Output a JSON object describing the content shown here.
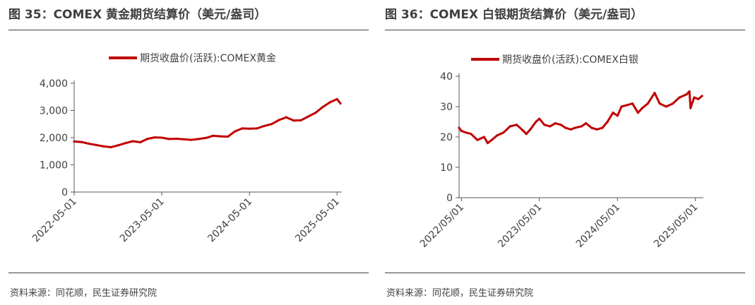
{
  "figures": [
    {
      "title": "图 35：COMEX 黄金期货结算价（美元/盎司）",
      "source": "资料来源：同花顺，民生证券研究院"
    },
    {
      "title": "图 36：COMEX 白银期货结算价（美元/盎司）",
      "source": "资料来源：同花顺，民生证券研究院"
    }
  ],
  "colors": {
    "series": "#C00000",
    "axis": "#595959",
    "text": "#404040"
  },
  "chart_data": [
    {
      "type": "line",
      "legend_position": "top-center",
      "grid": false,
      "ylim": [
        0,
        4000
      ],
      "yticks": [
        0,
        1000,
        2000,
        3000,
        4000
      ],
      "ytick_labels": [
        "0",
        "1,000",
        "2,000",
        "3,000",
        "4,000"
      ],
      "xlim": [
        "2022-05-01",
        "2025-05-15"
      ],
      "xtick_labels": [
        "2022-05-01",
        "2023-05-01",
        "2024-05-01",
        "2025-05-01"
      ],
      "series": [
        {
          "name": "期货收盘价(活跃):COMEX黄金",
          "x": [
            "2022-05-01",
            "2022-06-01",
            "2022-07-01",
            "2022-08-01",
            "2022-09-01",
            "2022-10-01",
            "2022-11-01",
            "2022-12-01",
            "2023-01-01",
            "2023-02-01",
            "2023-03-01",
            "2023-04-01",
            "2023-05-01",
            "2023-06-01",
            "2023-07-01",
            "2023-08-01",
            "2023-09-01",
            "2023-10-01",
            "2023-11-01",
            "2023-12-01",
            "2024-01-01",
            "2024-02-01",
            "2024-03-01",
            "2024-04-01",
            "2024-05-01",
            "2024-06-01",
            "2024-07-01",
            "2024-08-01",
            "2024-09-01",
            "2024-10-01",
            "2024-11-01",
            "2024-12-01",
            "2025-01-01",
            "2025-02-01",
            "2025-03-01",
            "2025-04-01",
            "2025-05-01",
            "2025-05-15"
          ],
          "y": [
            1860,
            1840,
            1780,
            1730,
            1680,
            1650,
            1720,
            1800,
            1870,
            1830,
            1950,
            2010,
            2000,
            1950,
            1960,
            1940,
            1920,
            1950,
            1990,
            2070,
            2050,
            2040,
            2230,
            2340,
            2330,
            2340,
            2430,
            2500,
            2650,
            2750,
            2630,
            2640,
            2780,
            2920,
            3120,
            3300,
            3420,
            3260
          ]
        }
      ]
    },
    {
      "type": "line",
      "legend_position": "top-center",
      "grid": false,
      "ylim": [
        0,
        40
      ],
      "yticks": [
        0,
        10,
        20,
        30,
        40
      ],
      "ytick_labels": [
        "0",
        "10",
        "20",
        "30",
        "40"
      ],
      "xlim": [
        "2022-04-20",
        "2025-06-01"
      ],
      "xtick_labels": [
        "2022/05/01",
        "2023/05/01",
        "2024/05/01",
        "2025/05/01"
      ],
      "series": [
        {
          "name": "期货收盘价(活跃):COMEX白银",
          "x": [
            "2022-04-20",
            "2022-05-01",
            "2022-05-20",
            "2022-06-15",
            "2022-07-15",
            "2022-08-15",
            "2022-09-01",
            "2022-09-20",
            "2022-10-15",
            "2022-11-15",
            "2022-12-15",
            "2023-01-15",
            "2023-02-15",
            "2023-03-01",
            "2023-03-20",
            "2023-04-15",
            "2023-05-01",
            "2023-05-25",
            "2023-06-20",
            "2023-07-15",
            "2023-08-10",
            "2023-09-01",
            "2023-09-25",
            "2023-10-15",
            "2023-11-15",
            "2023-12-05",
            "2024-01-01",
            "2024-01-25",
            "2024-02-20",
            "2024-03-15",
            "2024-04-10",
            "2024-05-01",
            "2024-05-20",
            "2024-06-15",
            "2024-07-10",
            "2024-08-05",
            "2024-08-25",
            "2024-09-20",
            "2024-10-22",
            "2024-11-15",
            "2024-12-15",
            "2025-01-15",
            "2025-02-15",
            "2025-03-20",
            "2025-04-03",
            "2025-04-08",
            "2025-04-25",
            "2025-05-15",
            "2025-06-01"
          ],
          "y": [
            23,
            22,
            21.5,
            21,
            19,
            20,
            18,
            19,
            20.5,
            21.5,
            23.5,
            24,
            22,
            21,
            22.5,
            25,
            26,
            24,
            23.5,
            24.5,
            24,
            23,
            22.5,
            23,
            23.5,
            24.5,
            23,
            22.5,
            23,
            25,
            28,
            27,
            30,
            30.5,
            31,
            28,
            29.5,
            31,
            34.5,
            31,
            30,
            31,
            33,
            34,
            35,
            29.5,
            33,
            32.5,
            33.5
          ]
        }
      ]
    }
  ]
}
